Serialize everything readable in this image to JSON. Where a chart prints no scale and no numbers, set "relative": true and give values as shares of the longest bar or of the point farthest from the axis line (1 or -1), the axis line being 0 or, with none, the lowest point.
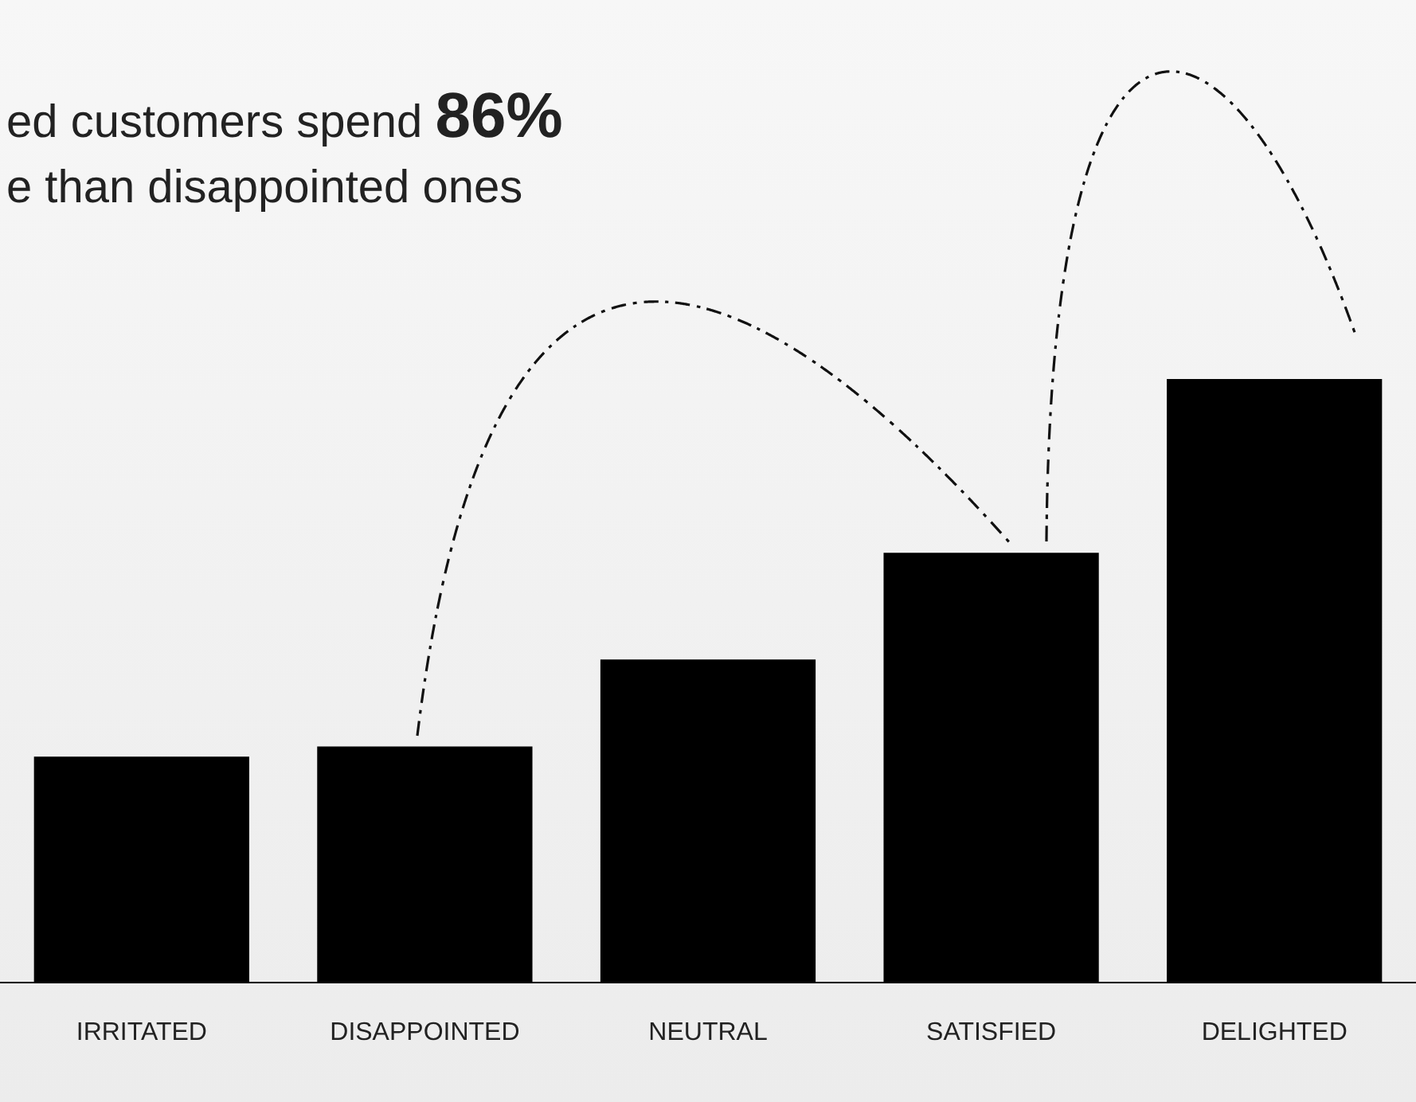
{
  "chart_data": {
    "type": "bar",
    "title": "ed customers spend 86%",
    "subtitle": "e than disappointed ones",
    "relative": true,
    "categories": [
      "IRRITATED",
      "DISAPPOINTED",
      "NEUTRAL",
      "SATISFIED",
      "DELIGHTED"
    ],
    "values": [
      0.374,
      0.391,
      0.535,
      0.712,
      1
    ],
    "color": "#000000",
    "grid": false,
    "legend": false
  }
}
